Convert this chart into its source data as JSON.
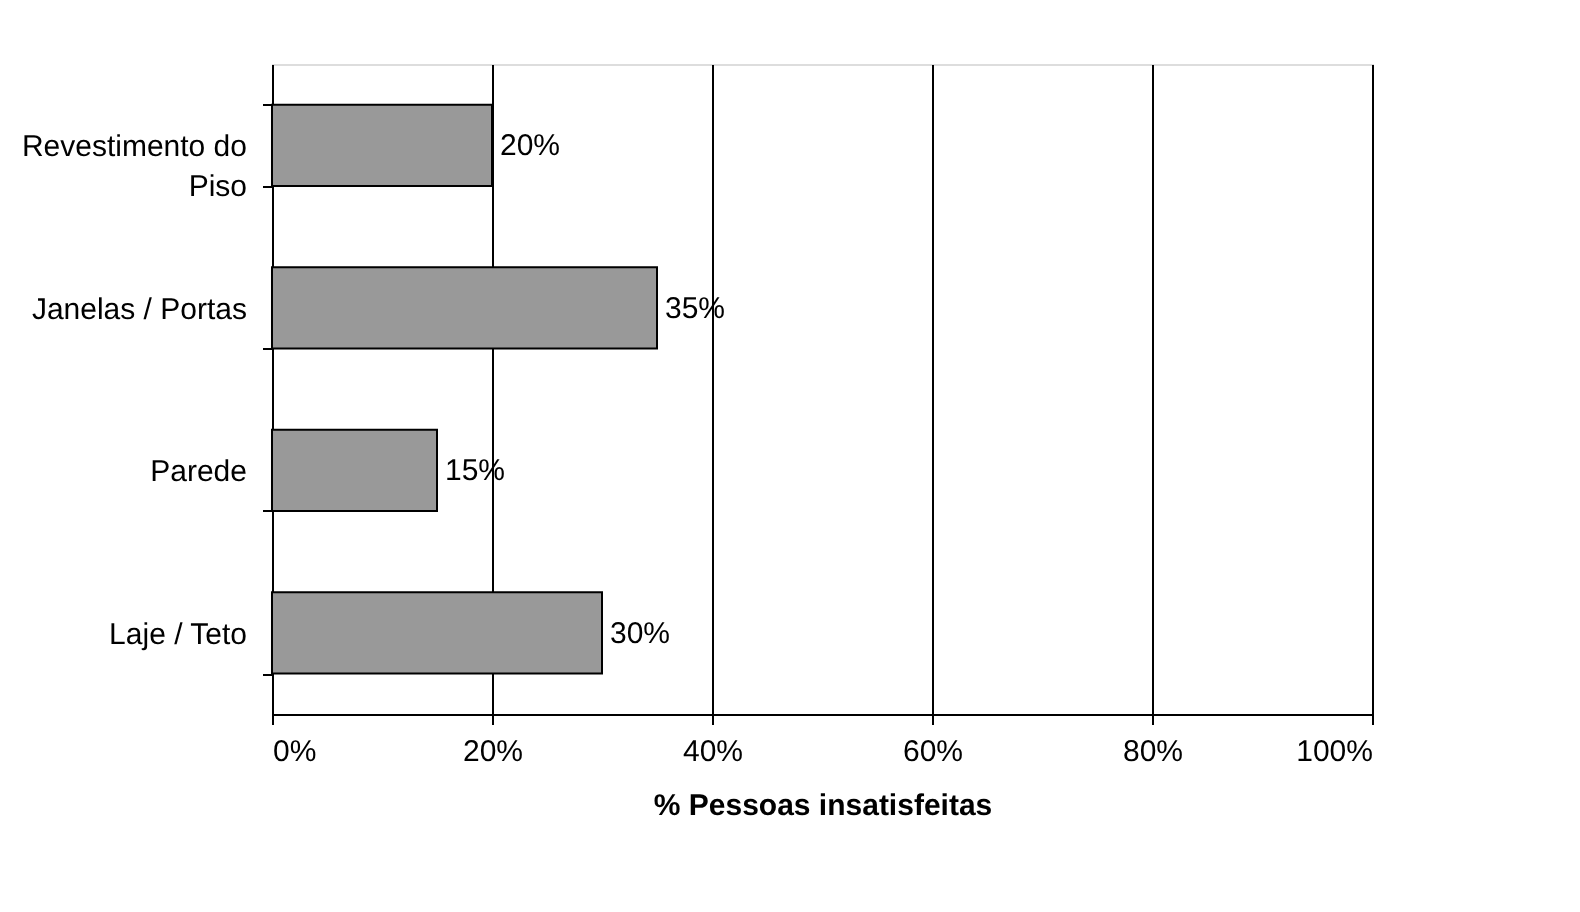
{
  "chart_data": {
    "type": "bar",
    "orientation": "horizontal",
    "xlabel": "% Pessoas insatisfeitas",
    "categories": [
      "Revestimento do Piso",
      "Janelas / Portas",
      "Parede",
      "Laje / Teto"
    ],
    "values": [
      20,
      35,
      15,
      30
    ],
    "value_labels": [
      "20%",
      "35%",
      "15%",
      "30%"
    ],
    "color": "#999999",
    "xlim": [
      0,
      100
    ],
    "xticks": [
      {
        "value": 0,
        "label": "0%"
      },
      {
        "value": 20,
        "label": "20%"
      },
      {
        "value": 40,
        "label": "40%"
      },
      {
        "value": 60,
        "label": "60%"
      },
      {
        "value": 80,
        "label": "80%"
      },
      {
        "value": 100,
        "label": "100%"
      }
    ],
    "grid": "x"
  }
}
